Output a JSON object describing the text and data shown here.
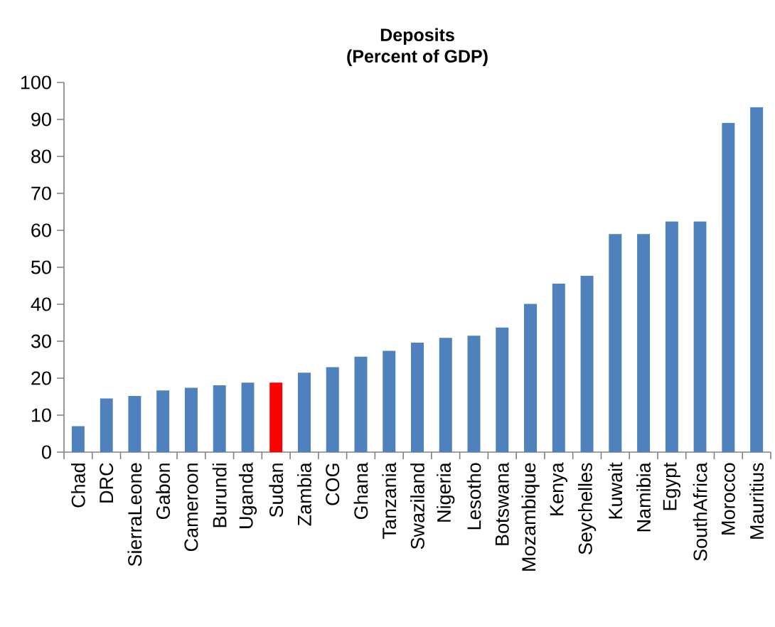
{
  "chart_data": {
    "type": "bar",
    "title": "Deposits",
    "subtitle": "(Percent of GDP)",
    "categories": [
      "Chad",
      "DRC",
      "SierraLeone",
      "Gabon",
      "Cameroon",
      "Burundi",
      "Uganda",
      "Sudan",
      "Zambia",
      "COG",
      "Ghana",
      "Tanzania",
      "Swaziland",
      "Nigeria",
      "Lesotho",
      "Botswana",
      "Mozambique",
      "Kenya",
      "Seychelles",
      "Kuwait",
      "Namibia",
      "Egypt",
      "SouthAfrica",
      "Morocco",
      "Mauritius"
    ],
    "values": [
      7,
      14.5,
      15.2,
      16.7,
      17.4,
      18.1,
      18.8,
      18.8,
      21.5,
      23,
      25.8,
      27.4,
      29.6,
      30.9,
      31.5,
      33.7,
      40.1,
      45.6,
      47.7,
      59,
      59,
      62.4,
      62.4,
      89.1,
      93.3
    ],
    "colors": [
      "#4f81bd",
      "#4f81bd",
      "#4f81bd",
      "#4f81bd",
      "#4f81bd",
      "#4f81bd",
      "#4f81bd",
      "#ff0000",
      "#4f81bd",
      "#4f81bd",
      "#4f81bd",
      "#4f81bd",
      "#4f81bd",
      "#4f81bd",
      "#4f81bd",
      "#4f81bd",
      "#4f81bd",
      "#4f81bd",
      "#4f81bd",
      "#4f81bd",
      "#4f81bd",
      "#4f81bd",
      "#4f81bd",
      "#4f81bd",
      "#4f81bd"
    ],
    "ylim": [
      0,
      100
    ],
    "yticks": [
      0,
      10,
      20,
      30,
      40,
      50,
      60,
      70,
      80,
      90,
      100
    ]
  }
}
